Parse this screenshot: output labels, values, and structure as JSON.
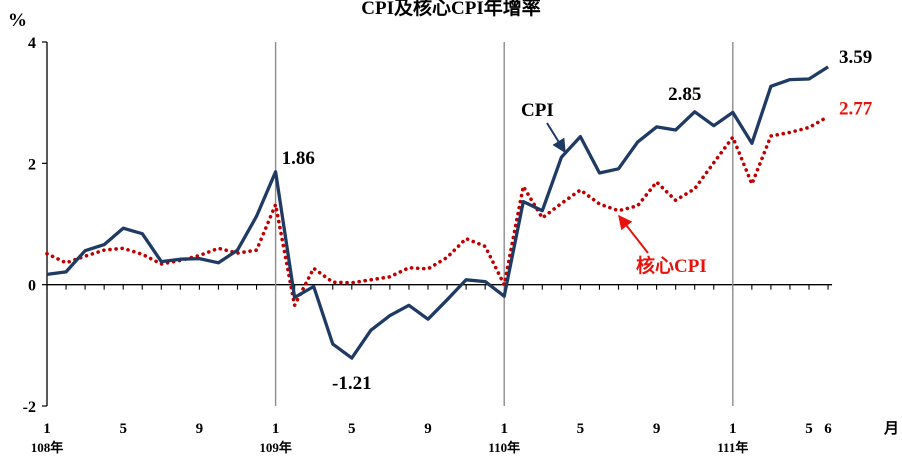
{
  "chart_data": {
    "type": "line",
    "title": "CPI及核心CPI年增率",
    "ylabel": "%",
    "xlabel": "月",
    "ylim": [
      -2,
      4
    ],
    "yticks": [
      -2,
      0,
      2,
      4
    ],
    "x_ticks": [
      {
        "index": 0,
        "month": "1",
        "year": "108年"
      },
      {
        "index": 4,
        "month": "5",
        "year": ""
      },
      {
        "index": 8,
        "month": "9",
        "year": ""
      },
      {
        "index": 12,
        "month": "1",
        "year": "109年"
      },
      {
        "index": 16,
        "month": "5",
        "year": ""
      },
      {
        "index": 20,
        "month": "9",
        "year": ""
      },
      {
        "index": 24,
        "month": "1",
        "year": "110年"
      },
      {
        "index": 28,
        "month": "5",
        "year": ""
      },
      {
        "index": 32,
        "month": "9",
        "year": ""
      },
      {
        "index": 36,
        "month": "1",
        "year": "111年"
      },
      {
        "index": 40,
        "month": "5",
        "year": ""
      },
      {
        "index": 41,
        "month": "6",
        "year": ""
      }
    ],
    "year_separators": [
      12,
      24,
      36
    ],
    "series": [
      {
        "name": "CPI",
        "color": "#1f3a63",
        "style": "solid",
        "values": [
          0.17,
          0.21,
          0.56,
          0.66,
          0.93,
          0.84,
          0.38,
          0.42,
          0.43,
          0.36,
          0.57,
          1.13,
          1.86,
          -0.21,
          -0.03,
          -0.98,
          -1.21,
          -0.75,
          -0.51,
          -0.34,
          -0.57,
          -0.25,
          0.08,
          0.05,
          -0.19,
          1.37,
          1.22,
          2.1,
          2.44,
          1.84,
          1.91,
          2.35,
          2.6,
          2.55,
          2.85,
          2.62,
          2.84,
          2.33,
          3.27,
          3.38,
          3.39,
          3.59
        ]
      },
      {
        "name": "核心CPI",
        "color": "#c00000",
        "style": "dotted",
        "values": [
          0.51,
          0.36,
          0.47,
          0.57,
          0.6,
          0.5,
          0.34,
          0.4,
          0.48,
          0.6,
          0.52,
          0.57,
          1.32,
          -0.34,
          0.27,
          0.04,
          0.03,
          0.08,
          0.13,
          0.28,
          0.26,
          0.45,
          0.76,
          0.63,
          0.0,
          1.62,
          1.1,
          1.34,
          1.56,
          1.33,
          1.22,
          1.3,
          1.69,
          1.39,
          1.58,
          2.01,
          2.43,
          1.66,
          2.45,
          2.51,
          2.59,
          2.77
        ]
      }
    ],
    "annotations": [
      {
        "text": "1.86",
        "series": 0,
        "index": 12
      },
      {
        "text": "-1.21",
        "series": 0,
        "index": 16
      },
      {
        "text": "2.85",
        "series": 0,
        "index": 34
      },
      {
        "text": "3.59",
        "series": 0,
        "index": 41
      },
      {
        "text": "2.77",
        "series": 1,
        "index": 41
      }
    ],
    "series_labels": [
      {
        "text": "CPI",
        "series": 0,
        "arrow_to_index": 27
      },
      {
        "text": "核心CPI",
        "series": 1,
        "arrow_to_index": 30
      }
    ],
    "grid": false
  }
}
